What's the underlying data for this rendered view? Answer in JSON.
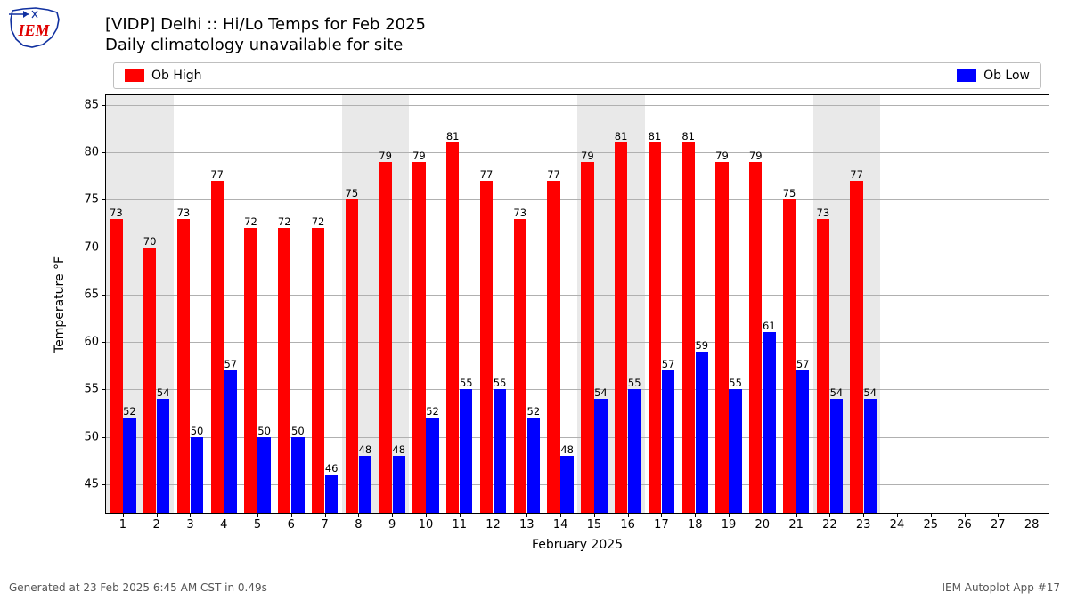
{
  "logo": {
    "name": "iem-logo",
    "text": "IEM",
    "text_color": "#e00000",
    "outline_color": "#1030a0",
    "accent_color": "#1030a0"
  },
  "title": {
    "line1": "[VIDP] Delhi :: Hi/Lo Temps for Feb 2025",
    "line2": "Daily climatology unavailable for site",
    "fontsize": 18
  },
  "legend": {
    "items": [
      {
        "label": "Ob High",
        "color": "#ff0000"
      },
      {
        "label": "Ob Low",
        "color": "#0000ff"
      }
    ],
    "border_color": "#bfbfbf",
    "fontsize": 14
  },
  "chart": {
    "type": "bar",
    "xlabel": "February 2025",
    "ylabel": "Temperature °F",
    "label_fontsize": 14,
    "tick_fontsize": 13,
    "background_color": "#ffffff",
    "grid_color": "#b0b0b0",
    "weekend_band_color": "#e9e9e9",
    "x": {
      "min": 0.5,
      "max": 28.5,
      "ticks": [
        1,
        2,
        3,
        4,
        5,
        6,
        7,
        8,
        9,
        10,
        11,
        12,
        13,
        14,
        15,
        16,
        17,
        18,
        19,
        20,
        21,
        22,
        23,
        24,
        25,
        26,
        27,
        28
      ]
    },
    "y": {
      "min": 42,
      "max": 86,
      "ticks": [
        45,
        50,
        55,
        60,
        65,
        70,
        75,
        80,
        85
      ]
    },
    "weekend_bands": [
      [
        0.5,
        2.5
      ],
      [
        7.5,
        9.5
      ],
      [
        14.5,
        16.5
      ],
      [
        21.5,
        23.5
      ]
    ],
    "bar_width": 0.38,
    "bar_offset_high": -0.2,
    "bar_offset_low": 0.2,
    "value_label_fontsize": 11.5,
    "days": [
      {
        "d": 1,
        "high": 73,
        "low": 52
      },
      {
        "d": 2,
        "high": 70,
        "low": 54
      },
      {
        "d": 3,
        "high": 73,
        "low": 50
      },
      {
        "d": 4,
        "high": 77,
        "low": 57
      },
      {
        "d": 5,
        "high": 72,
        "low": 50
      },
      {
        "d": 6,
        "high": 72,
        "low": 50
      },
      {
        "d": 7,
        "high": 72,
        "low": 46
      },
      {
        "d": 8,
        "high": 75,
        "low": 48
      },
      {
        "d": 9,
        "high": 79,
        "low": 48
      },
      {
        "d": 10,
        "high": 79,
        "low": 52
      },
      {
        "d": 11,
        "high": 81,
        "low": 55
      },
      {
        "d": 12,
        "high": 77,
        "low": 55
      },
      {
        "d": 13,
        "high": 73,
        "low": 52
      },
      {
        "d": 14,
        "high": 77,
        "low": 48
      },
      {
        "d": 15,
        "high": 79,
        "low": 54
      },
      {
        "d": 16,
        "high": 81,
        "low": 55
      },
      {
        "d": 17,
        "high": 81,
        "low": 57
      },
      {
        "d": 18,
        "high": 81,
        "low": 59
      },
      {
        "d": 19,
        "high": 79,
        "low": 55
      },
      {
        "d": 20,
        "high": 79,
        "low": 61
      },
      {
        "d": 21,
        "high": 75,
        "low": 57
      },
      {
        "d": 22,
        "high": 73,
        "low": 54
      },
      {
        "d": 23,
        "high": 77,
        "low": 54
      }
    ],
    "colors": {
      "high": "#ff0000",
      "low": "#0000ff"
    }
  },
  "footer": {
    "left": "Generated at 23 Feb 2025 6:45 AM CST in 0.49s",
    "right": "IEM Autoplot App #17",
    "fontsize": 12,
    "color": "#555555"
  }
}
